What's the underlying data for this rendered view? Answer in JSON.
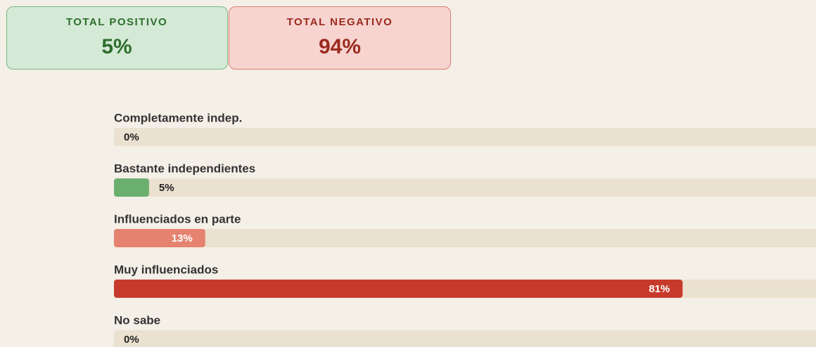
{
  "cards": [
    {
      "title": "TOTAL POSITIVO",
      "value": "5%"
    },
    {
      "title": "TOTAL NEGATIVO",
      "value": "94%"
    }
  ],
  "chart_data": {
    "type": "bar",
    "categories": [
      "Completamente indep.",
      "Bastante independientes",
      "Influenciados en parte",
      "Muy influenciados",
      "No sabe"
    ],
    "values": [
      0,
      5,
      13,
      81,
      0
    ],
    "value_labels": [
      "0%",
      "5%",
      "13%",
      "81%",
      "0%"
    ],
    "colors": [
      "#6aaf6e",
      "#6aaf6e",
      "#e58270",
      "#c73a2b",
      "#c73a2b"
    ],
    "xlim": [
      0,
      100
    ]
  }
}
